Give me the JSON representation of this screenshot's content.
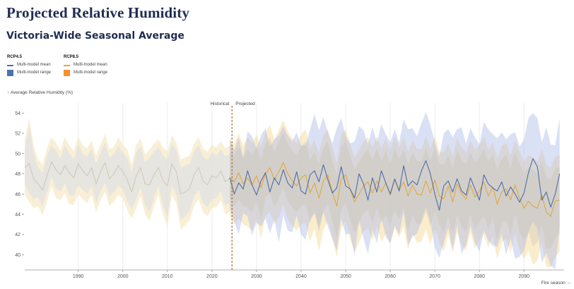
{
  "title": "Projected Relative Humidity",
  "subtitle": "Victoria-Wide Seasonal Average",
  "legend": {
    "rcp45": {
      "heading": "RCP4.5",
      "mean_label": "Multi-model mean",
      "range_label": "Multi-model range",
      "mean_color": "#4f6da6",
      "range_color": "#4a72b0"
    },
    "rcp85": {
      "heading": "RCP8.5",
      "mean_label": "Multi-model mean",
      "range_label": "Multi-model range",
      "mean_color": "#e0a93a",
      "range_color": "#f0922e"
    }
  },
  "chart_data": {
    "type": "line",
    "ylabel": "↑ Average Relative Humidity (%)",
    "xlabel": "Fire season →",
    "ylim": [
      38.5,
      55
    ],
    "xlim": [
      1978,
      2099
    ],
    "yticks": [
      40,
      42,
      44,
      46,
      48,
      50,
      52,
      54
    ],
    "xticks": [
      1990,
      2000,
      2010,
      2020,
      2030,
      2040,
      2050,
      2060,
      2070,
      2080,
      2090
    ],
    "grid": "vertical",
    "divider": {
      "x": 2024.5,
      "left_label": "Historical",
      "right_label": "Projected"
    },
    "historical": {
      "years": [
        1978,
        1979,
        1980,
        1981,
        1982,
        1983,
        1984,
        1985,
        1986,
        1987,
        1988,
        1989,
        1990,
        1991,
        1992,
        1993,
        1994,
        1995,
        1996,
        1997,
        1998,
        1999,
        2000,
        2001,
        2002,
        2003,
        2004,
        2005,
        2006,
        2007,
        2008,
        2009,
        2010,
        2011,
        2012,
        2013,
        2014,
        2015,
        2016,
        2017,
        2018,
        2019,
        2020,
        2021,
        2022,
        2023,
        2024
      ],
      "mean": [
        48.6,
        49.0,
        47.5,
        47.0,
        46.4,
        47.8,
        49.2,
        48.4,
        47.9,
        48.8,
        48.1,
        47.6,
        49.0,
        48.3,
        47.8,
        48.6,
        47.0,
        48.2,
        49.1,
        47.5,
        48.0,
        48.8,
        48.2,
        47.4,
        46.2,
        47.8,
        48.6,
        47.0,
        46.9,
        47.9,
        48.6,
        47.3,
        46.8,
        49.0,
        48.2,
        46.0,
        46.2,
        46.6,
        47.9,
        48.6,
        47.3,
        46.9,
        47.8,
        47.6,
        48.3,
        47.2,
        47.6
      ],
      "low": [
        46.0,
        45.2,
        44.6,
        44.8,
        43.9,
        45.3,
        46.8,
        45.6,
        45.4,
        46.1,
        45.0,
        44.9,
        46.0,
        45.5,
        45.1,
        45.9,
        44.2,
        45.4,
        46.2,
        44.8,
        45.3,
        45.9,
        45.6,
        44.4,
        43.6,
        44.6,
        45.8,
        44.0,
        43.3,
        44.8,
        45.9,
        44.0,
        42.8,
        45.9,
        45.1,
        42.5,
        42.9,
        43.4,
        44.9,
        45.5,
        44.2,
        43.8,
        44.6,
        44.7,
        45.4,
        44.0,
        44.2
      ],
      "high": [
        51.4,
        53.5,
        50.8,
        49.4,
        48.9,
        50.6,
        51.6,
        51.1,
        50.3,
        51.6,
        50.8,
        50.2,
        51.7,
        50.8,
        50.5,
        51.3,
        49.8,
        50.9,
        51.9,
        50.4,
        50.7,
        51.6,
        50.9,
        50.4,
        48.9,
        50.9,
        51.5,
        49.9,
        50.4,
        51.0,
        51.4,
        50.6,
        50.2,
        51.8,
        51.1,
        49.4,
        49.6,
        49.8,
        51.0,
        51.6,
        50.5,
        50.2,
        50.9,
        50.6,
        51.2,
        50.5,
        50.8
      ]
    },
    "series": [
      {
        "name": "RCP4.5",
        "years": [
          2024,
          2025,
          2026,
          2027,
          2028,
          2029,
          2030,
          2031,
          2032,
          2033,
          2034,
          2035,
          2036,
          2037,
          2038,
          2039,
          2040,
          2041,
          2042,
          2043,
          2044,
          2045,
          2046,
          2047,
          2048,
          2049,
          2050,
          2051,
          2052,
          2053,
          2054,
          2055,
          2056,
          2057,
          2058,
          2059,
          2060,
          2061,
          2062,
          2063,
          2064,
          2065,
          2066,
          2067,
          2068,
          2069,
          2070,
          2071,
          2072,
          2073,
          2074,
          2075,
          2076,
          2077,
          2078,
          2079,
          2080,
          2081,
          2082,
          2083,
          2084,
          2085,
          2086,
          2087,
          2088,
          2089,
          2090,
          2091,
          2092,
          2093,
          2094,
          2095,
          2096,
          2097,
          2098
        ],
        "mean": [
          47.6,
          46.0,
          47.1,
          46.5,
          48.3,
          46.9,
          45.9,
          47.3,
          48.1,
          46.2,
          47.6,
          46.9,
          48.4,
          47.1,
          46.6,
          48.2,
          46.3,
          46.0,
          47.9,
          48.3,
          47.2,
          48.9,
          47.4,
          46.1,
          46.6,
          48.7,
          46.8,
          46.5,
          45.6,
          48.0,
          47.0,
          45.4,
          47.6,
          46.2,
          48.3,
          47.1,
          46.0,
          47.5,
          46.3,
          48.8,
          46.8,
          47.3,
          46.9,
          48.3,
          49.3,
          48.0,
          46.0,
          44.4,
          46.8,
          47.3,
          46.2,
          47.5,
          46.3,
          45.9,
          47.6,
          46.5,
          45.4,
          47.9,
          47.0,
          46.6,
          46.3,
          47.2,
          45.8,
          46.7,
          46.0,
          45.2,
          46.1,
          48.1,
          49.5,
          48.7,
          45.4,
          46.2,
          44.7,
          46.0,
          48.0
        ],
        "low": [
          44.6,
          43.3,
          42.0,
          44.1,
          43.8,
          41.9,
          43.2,
          42.8,
          43.6,
          42.1,
          43.5,
          41.2,
          43.9,
          42.4,
          42.2,
          43.9,
          42.0,
          41.5,
          43.5,
          44.1,
          42.6,
          44.2,
          42.8,
          41.6,
          40.4,
          43.6,
          42.0,
          42.1,
          39.9,
          43.5,
          41.6,
          40.1,
          42.5,
          41.1,
          43.6,
          41.8,
          41.1,
          42.9,
          42.0,
          44.2,
          41.0,
          41.8,
          42.1,
          43.3,
          44.7,
          43.3,
          40.7,
          39.7,
          41.2,
          42.7,
          40.5,
          42.9,
          40.1,
          41.0,
          42.9,
          41.2,
          40.3,
          42.4,
          41.4,
          40.9,
          40.8,
          42.1,
          40.0,
          41.6,
          39.6,
          39.8,
          40.4,
          42.2,
          43.3,
          42.6,
          39.2,
          40.2,
          38.9,
          38.6,
          42.8
        ],
        "high": [
          51.4,
          50.4,
          51.6,
          49.6,
          52.2,
          51.7,
          50.5,
          51.8,
          52.5,
          50.7,
          51.4,
          51.8,
          52.7,
          51.8,
          51.2,
          52.1,
          50.8,
          50.8,
          52.4,
          53.9,
          52.3,
          53.6,
          52.1,
          51.0,
          52.5,
          53.5,
          51.7,
          51.0,
          51.2,
          52.7,
          52.3,
          50.9,
          52.6,
          51.1,
          52.9,
          51.9,
          51.1,
          52.4,
          51.1,
          53.4,
          52.4,
          52.5,
          51.7,
          53.0,
          54.1,
          52.8,
          51.1,
          49.7,
          52.0,
          52.4,
          51.6,
          52.4,
          52.6,
          51.0,
          52.5,
          51.6,
          50.9,
          53.1,
          52.4,
          51.9,
          51.5,
          52.1,
          51.4,
          51.9,
          52.1,
          50.7,
          51.4,
          53.5,
          54.0,
          53.5,
          51.1,
          52.6,
          50.9,
          50.8,
          53.5
        ]
      },
      {
        "name": "RCP8.5",
        "years": [
          2024,
          2025,
          2026,
          2027,
          2028,
          2029,
          2030,
          2031,
          2032,
          2033,
          2034,
          2035,
          2036,
          2037,
          2038,
          2039,
          2040,
          2041,
          2042,
          2043,
          2044,
          2045,
          2046,
          2047,
          2048,
          2049,
          2050,
          2051,
          2052,
          2053,
          2054,
          2055,
          2056,
          2057,
          2058,
          2059,
          2060,
          2061,
          2062,
          2063,
          2064,
          2065,
          2066,
          2067,
          2068,
          2069,
          2070,
          2071,
          2072,
          2073,
          2074,
          2075,
          2076,
          2077,
          2078,
          2079,
          2080,
          2081,
          2082,
          2083,
          2084,
          2085,
          2086,
          2087,
          2088,
          2089,
          2090,
          2091,
          2092,
          2093,
          2094,
          2095,
          2096,
          2097,
          2098
        ],
        "mean": [
          47.6,
          47.2,
          48.1,
          47.0,
          47.6,
          46.9,
          47.8,
          46.6,
          48.0,
          48.6,
          47.4,
          48.2,
          49.1,
          48.0,
          47.3,
          46.8,
          47.6,
          47.9,
          46.1,
          47.1,
          45.6,
          47.3,
          47.9,
          46.2,
          44.8,
          47.5,
          47.9,
          46.5,
          45.2,
          46.0,
          46.8,
          47.2,
          46.1,
          47.3,
          46.2,
          47.1,
          45.9,
          47.4,
          46.4,
          47.2,
          45.8,
          46.9,
          46.0,
          45.9,
          47.3,
          46.1,
          47.4,
          45.8,
          45.5,
          46.8,
          45.2,
          47.0,
          46.0,
          45.5,
          46.9,
          45.7,
          46.3,
          47.2,
          45.8,
          46.7,
          45.0,
          46.2,
          46.5,
          45.4,
          46.9,
          45.6,
          44.6,
          45.3,
          44.8,
          44.6,
          45.9,
          44.2,
          43.8,
          45.3,
          45.4
        ],
        "low": [
          43.8,
          43.0,
          43.6,
          43.0,
          42.8,
          42.4,
          43.5,
          41.6,
          43.9,
          44.2,
          43.0,
          43.7,
          44.9,
          43.5,
          42.9,
          42.4,
          43.0,
          43.2,
          41.3,
          42.6,
          40.4,
          42.5,
          43.3,
          41.6,
          39.8,
          42.6,
          43.4,
          41.6,
          40.3,
          41.2,
          42.3,
          42.6,
          41.4,
          42.8,
          41.3,
          42.1,
          41.1,
          42.6,
          41.7,
          42.8,
          40.5,
          42.1,
          41.2,
          41.3,
          42.5,
          41.0,
          42.6,
          41.2,
          40.3,
          42.0,
          40.2,
          42.2,
          41.0,
          40.4,
          42.2,
          40.6,
          41.5,
          42.0,
          40.7,
          41.9,
          39.6,
          41.2,
          41.6,
          40.2,
          42.2,
          40.4,
          39.6,
          40.4,
          39.0,
          39.4,
          41.2,
          38.8,
          38.8,
          39.8,
          40.3
        ],
        "high": [
          51.4,
          51.0,
          52.0,
          50.8,
          51.6,
          51.0,
          51.9,
          50.6,
          52.1,
          52.8,
          51.4,
          52.3,
          53.3,
          52.2,
          51.5,
          51.0,
          51.9,
          52.4,
          50.6,
          51.3,
          50.1,
          51.8,
          52.4,
          50.6,
          49.1,
          51.9,
          52.4,
          51.0,
          49.6,
          50.4,
          51.2,
          51.6,
          50.6,
          51.7,
          50.5,
          51.5,
          50.2,
          51.8,
          50.6,
          51.6,
          50.2,
          51.3,
          50.5,
          50.4,
          51.7,
          50.5,
          51.8,
          50.2,
          50.1,
          51.0,
          49.8,
          51.5,
          50.6,
          50.1,
          51.3,
          50.4,
          50.8,
          51.7,
          50.4,
          51.1,
          49.6,
          50.7,
          51.1,
          49.8,
          51.3,
          50.2,
          49.2,
          49.9,
          49.6,
          49.2,
          50.4,
          48.9,
          48.6,
          49.7,
          49.9
        ]
      }
    ]
  }
}
